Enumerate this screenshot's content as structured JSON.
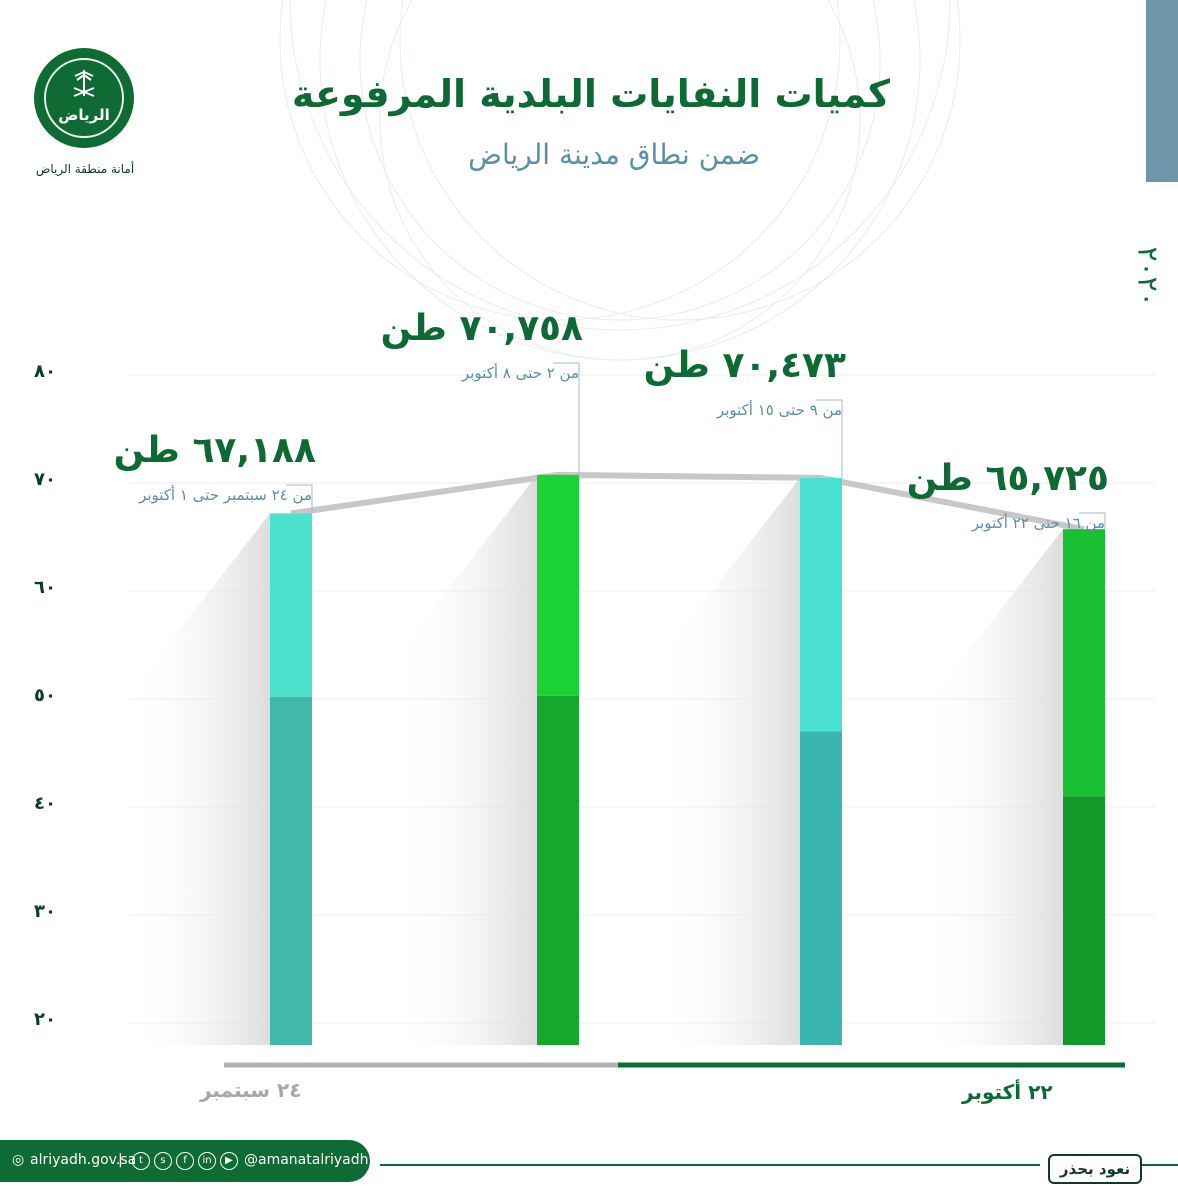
{
  "header": {
    "title": "كميات النفايات البلدية المرفوعة",
    "subtitle": "ضمن نطاق مدينة الرياض",
    "org_name": "أمانة منطقة الرياض",
    "logo_text": "الرياض",
    "year": "٢٠٢٠"
  },
  "chart_data": {
    "type": "bar",
    "categories": [
      "من ٢٤ سبتمبر حتى ١ أكتوبر",
      "من ٢ حتى ٨ أكتوبر",
      "من ٩ حتى ١٥ أكتوبر",
      "من ١٦ حتى ٢٢ أكتوبر"
    ],
    "values": [
      67.188,
      70.758,
      70.473,
      65.725
    ],
    "value_labels": [
      "٦٧,١٨٨",
      "٧٠,٧٥٨",
      "٧٠,٤٧٣",
      "٦٥,٧٢٥"
    ],
    "unit": "طن",
    "ylim": [
      20,
      80
    ],
    "yticks": [
      "٢٠",
      "٣٠",
      "٤٠",
      "٥٠",
      "٦٠",
      "٧٠",
      "٨٠"
    ],
    "ytick_values": [
      20,
      30,
      40,
      50,
      60,
      70,
      80
    ],
    "grid": true,
    "bar_colors": [
      {
        "top": "#4de2ce",
        "bottom": "#40b9ab"
      },
      {
        "top": "#19d235",
        "bottom": "#14a82c"
      },
      {
        "top": "#4ae0d2",
        "bottom": "#3bb5af"
      },
      {
        "top": "#19c032",
        "bottom": "#119a2a"
      }
    ],
    "connector_color": "#c8c8c8",
    "period_start": "٢٤ سبتمبر",
    "period_end": "٢٢ أكتوبر"
  },
  "footer": {
    "website": "alriyadh.gov.sa",
    "handle": "@amanatalriyadh",
    "social_icons": [
      "twitter-icon",
      "snapchat-icon",
      "facebook-icon",
      "linkedin-icon",
      "youtube-icon"
    ],
    "slogan": "نعود بحذر"
  }
}
